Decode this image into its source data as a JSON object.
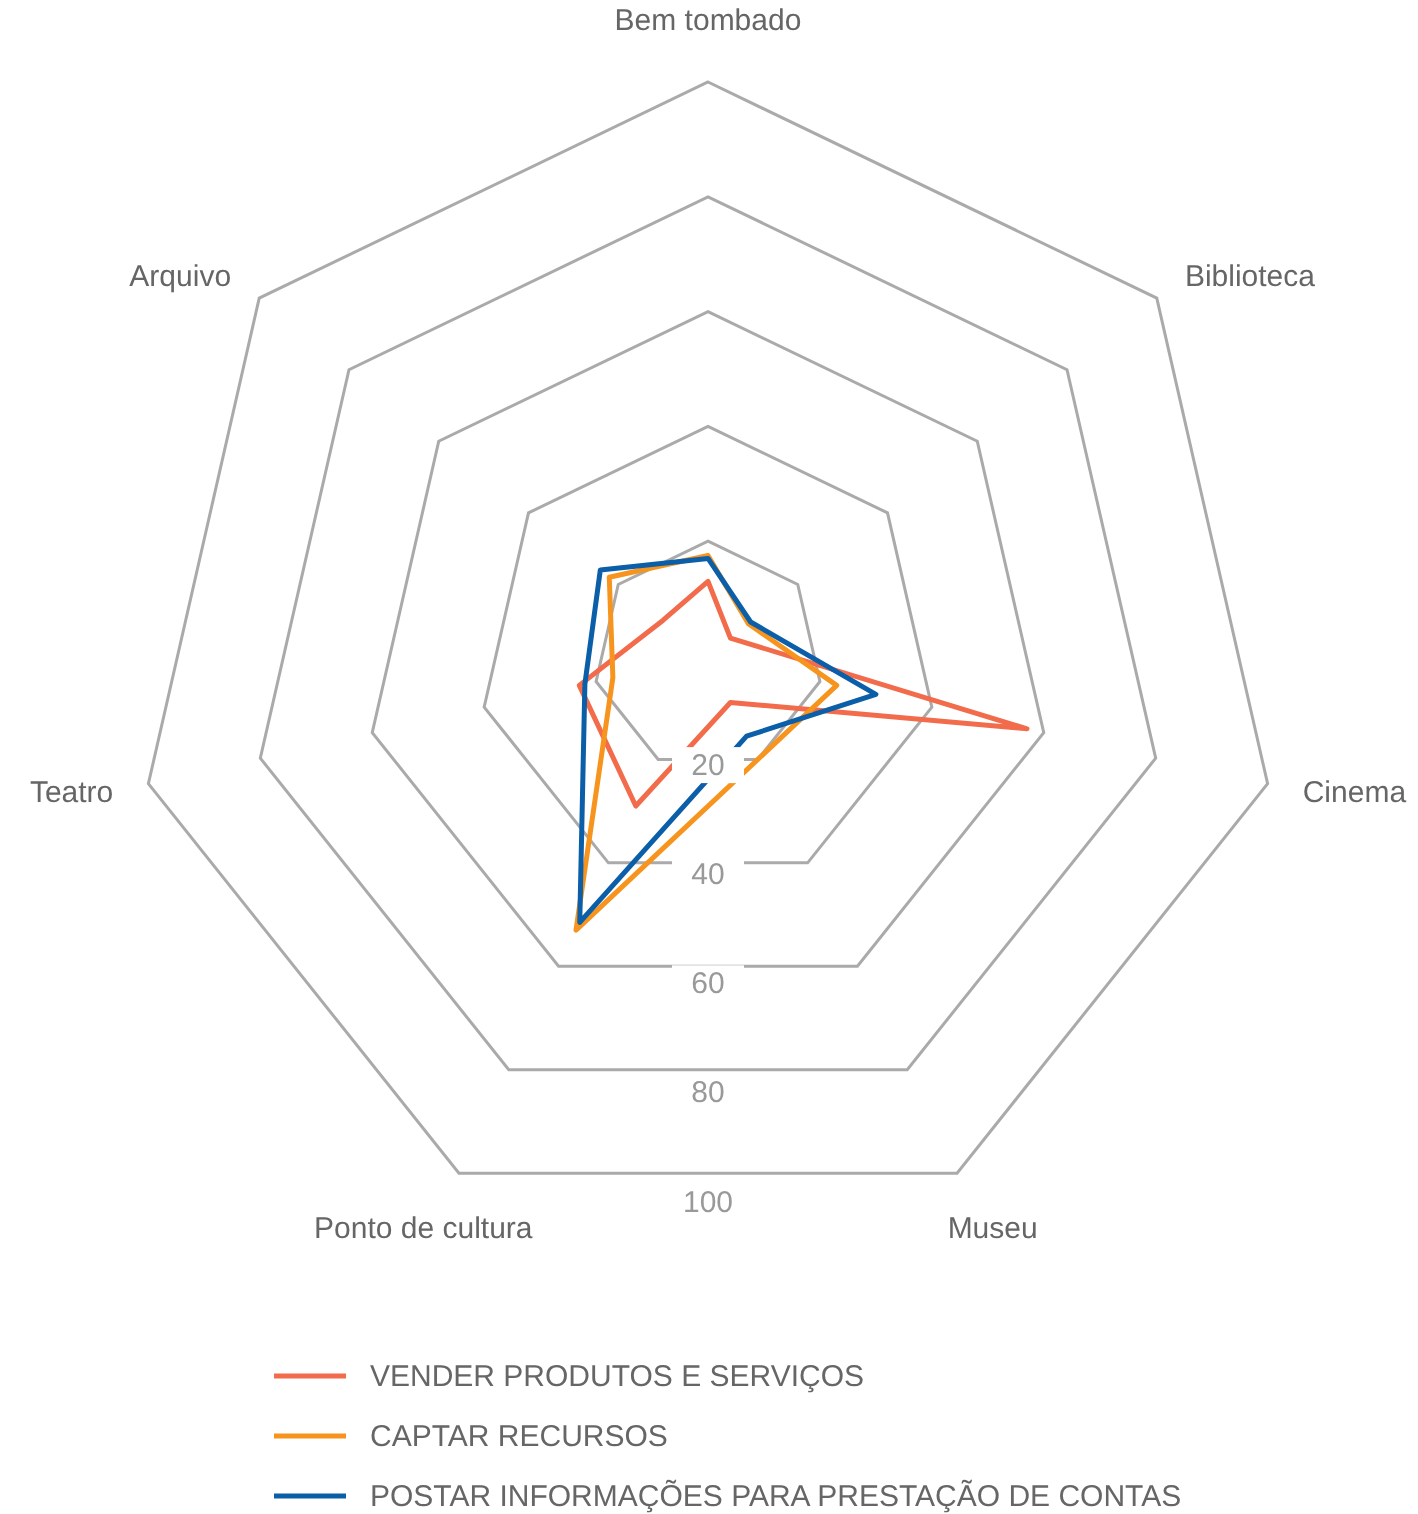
{
  "chart_data": {
    "type": "radar",
    "categories": [
      "Bem tombado",
      "Biblioteca",
      "Cinema",
      "Museu",
      "Ponto de cultura",
      "Teatro",
      "Arquivo"
    ],
    "ylim": [
      0,
      100
    ],
    "yticks": [
      20,
      40,
      60,
      80,
      100
    ],
    "grid": true,
    "legend": "bottom",
    "marker": "none",
    "series": [
      {
        "name": "VENDER PRODUTOS E SERVIÇOS",
        "color": "#f26b4a",
        "values": [
          13,
          5,
          57,
          9,
          29,
          23,
          10
        ]
      },
      {
        "name": "CAPTAR RECURSOS",
        "color": "#f7941d",
        "values": [
          17.5,
          9,
          23,
          20,
          53,
          17,
          22
        ]
      },
      {
        "name": "POSTAR INFORMAÇÕES PARA PRESTAÇÃO DE CONTAS",
        "color": "#0b5ea8",
        "values": [
          17,
          9.5,
          30,
          15.5,
          51.5,
          22,
          24
        ]
      }
    ]
  }
}
